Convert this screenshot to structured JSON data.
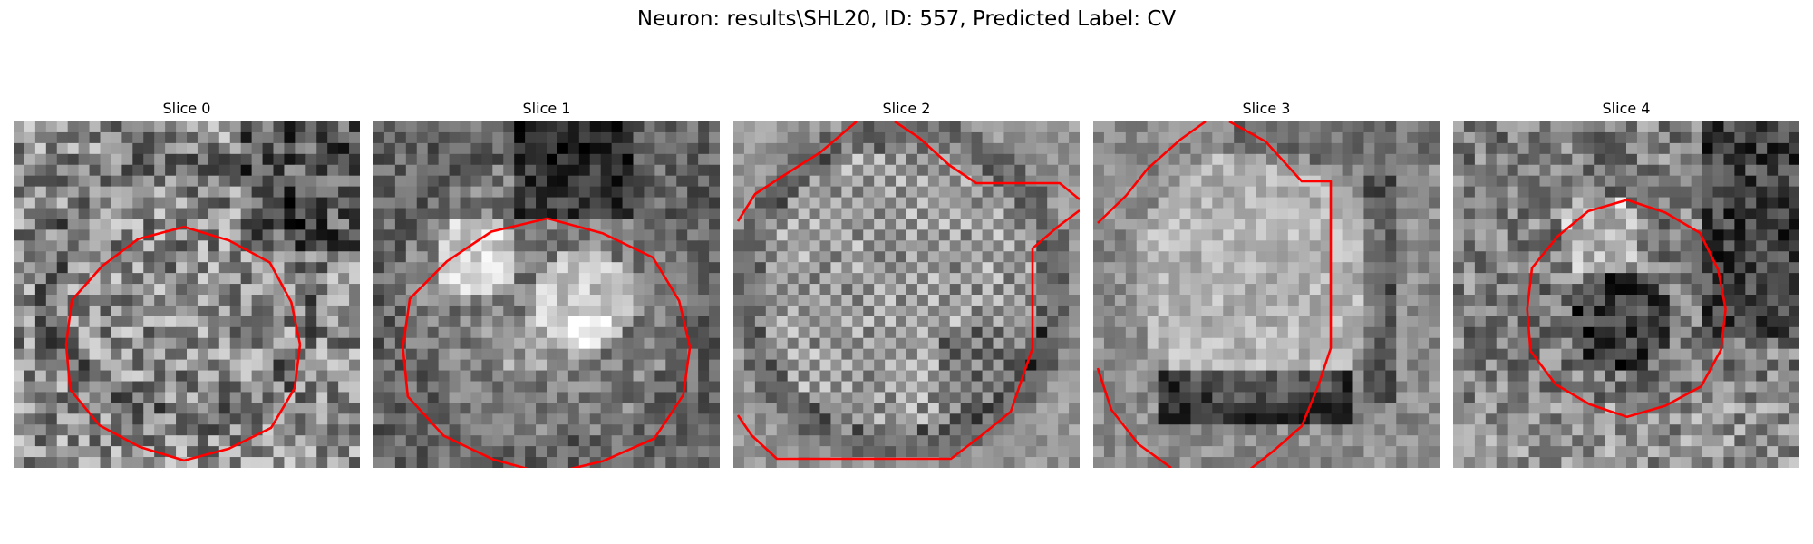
{
  "figure": {
    "title": "Neuron: results\\SHL20, ID: 557, Predicted Label: CV",
    "outline_color": "#ff0000"
  },
  "panels": [
    {
      "title": "Slice 0",
      "texture": "noisy-soma"
    },
    {
      "title": "Slice 1",
      "texture": "bright-blob"
    },
    {
      "title": "Slice 2",
      "texture": "striped-disc"
    },
    {
      "title": "Slice 3",
      "texture": "bright-disc-dark-rim"
    },
    {
      "title": "Slice 4",
      "texture": "dark-soma"
    }
  ]
}
